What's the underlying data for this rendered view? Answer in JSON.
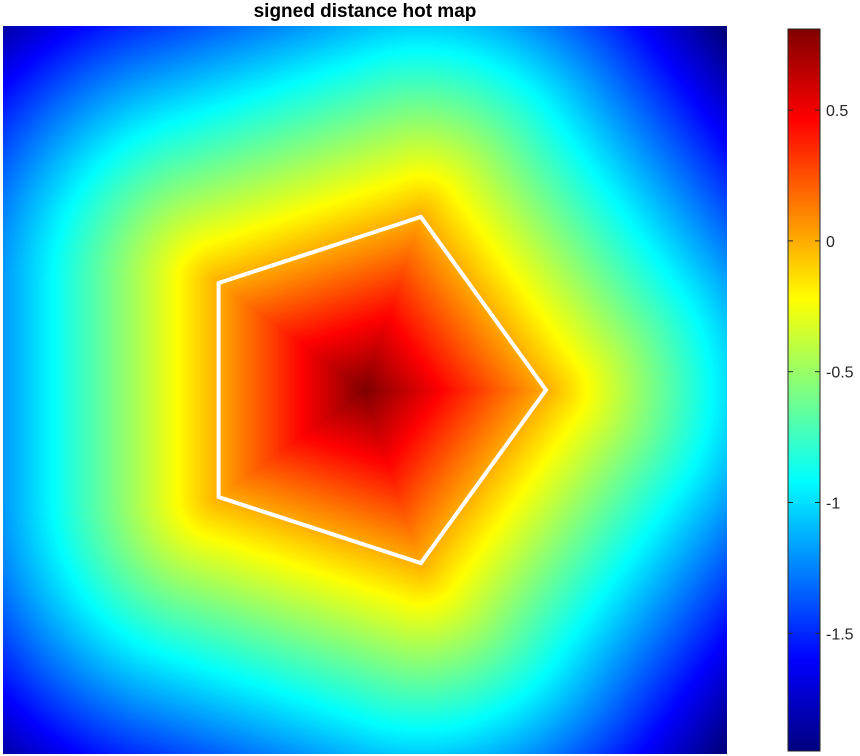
{
  "chart_data": {
    "type": "heatmap",
    "title": "signed distance hot map",
    "xlabel": "",
    "ylabel": "",
    "field": "signed distance to a regular pentagon (positive inside, negative outside)",
    "domain": {
      "xlim": [
        -2,
        2
      ],
      "ylim": [
        -2,
        2
      ]
    },
    "grid": false,
    "colormap": "jet",
    "pentagon": {
      "circumradius": 1,
      "center": [
        0,
        0
      ],
      "vertices": [
        [
          1,
          0
        ],
        [
          0.309,
          0.951
        ],
        [
          -0.809,
          0.588
        ],
        [
          -0.809,
          -0.588
        ],
        [
          0.309,
          -0.951
        ]
      ],
      "outline_color": "#ffffff"
    },
    "colorbar": {
      "location": "right",
      "clim": [
        -1.95,
        0.81
      ],
      "ticks": [
        0.5,
        0,
        -0.5,
        -1,
        -1.5
      ],
      "tick_labels": [
        "0.5",
        "0",
        "-0.5",
        "-1",
        "-1.5"
      ]
    }
  }
}
